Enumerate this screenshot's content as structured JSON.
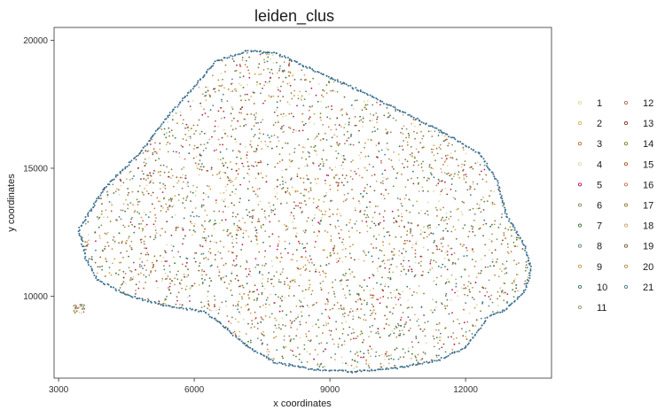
{
  "chart_data": {
    "type": "scatter",
    "title": "leiden_clus",
    "xlabel": "x coordinates",
    "ylabel": "y coordinates",
    "xlim": [
      2900,
      13900
    ],
    "ylim": [
      20500,
      6800
    ],
    "y_axis_reversed": true,
    "xticks": [
      3000,
      6000,
      9000,
      12000
    ],
    "yticks": [
      10000,
      15000,
      20000
    ],
    "grid": false,
    "legend_placement": "right",
    "legend": [
      {
        "label": "1",
        "color": "#e0d8a0"
      },
      {
        "label": "2",
        "color": "#d9b35a"
      },
      {
        "label": "3",
        "color": "#b8732e"
      },
      {
        "label": "4",
        "color": "#e6d4b0"
      },
      {
        "label": "5",
        "color": "#c2185b"
      },
      {
        "label": "6",
        "color": "#8a8a5a"
      },
      {
        "label": "7",
        "color": "#3f7a3f"
      },
      {
        "label": "8",
        "color": "#5c8a6a"
      },
      {
        "label": "9",
        "color": "#c99a3e"
      },
      {
        "label": "10",
        "color": "#2e7d6b"
      },
      {
        "label": "11",
        "color": "#9c8f6a"
      },
      {
        "label": "12",
        "color": "#b06a4a"
      },
      {
        "label": "13",
        "color": "#8b3a2a"
      },
      {
        "label": "14",
        "color": "#6b8e23"
      },
      {
        "label": "15",
        "color": "#a05a2c"
      },
      {
        "label": "16",
        "color": "#c07850"
      },
      {
        "label": "17",
        "color": "#8c7a3c"
      },
      {
        "label": "18",
        "color": "#d2a679"
      },
      {
        "label": "19",
        "color": "#7a5c3a"
      },
      {
        "label": "20",
        "color": "#b58f4f"
      },
      {
        "label": "21",
        "color": "#4a7f8f"
      }
    ],
    "edge_color": "#3a6f8f",
    "band_color": "#c9973a",
    "accent_color": "#c2185b",
    "cluster_regions": [
      {
        "cluster": "13",
        "x": 4300,
        "y": 11200
      },
      {
        "cluster": "5",
        "x": 8400,
        "y": 12600
      },
      {
        "cluster": "21",
        "x": 13000,
        "y": 11500
      }
    ]
  }
}
